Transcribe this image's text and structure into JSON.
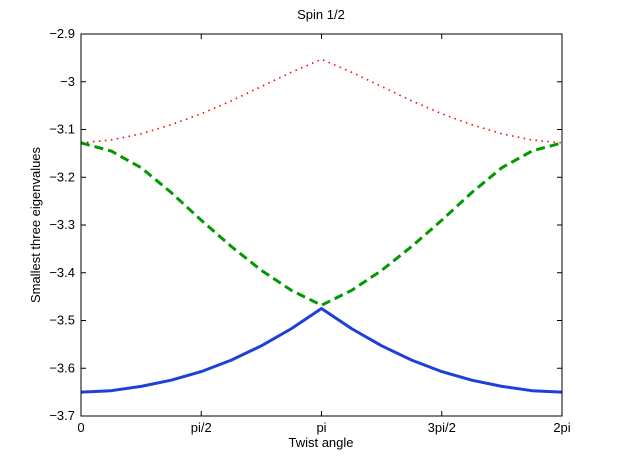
{
  "chart_data": {
    "type": "line",
    "title": "Spin 1/2",
    "xlabel": "Twist angle",
    "ylabel": "Smallest three eigenvalues",
    "xlim": [
      0,
      6.283185
    ],
    "ylim": [
      -3.7,
      -2.9
    ],
    "xticks": [
      {
        "value": 0,
        "label": "0"
      },
      {
        "value": 1.570796,
        "label": "pi/2"
      },
      {
        "value": 3.141593,
        "label": "pi"
      },
      {
        "value": 4.712389,
        "label": "3pi/2"
      },
      {
        "value": 6.283185,
        "label": "2pi"
      }
    ],
    "yticks": [
      {
        "value": -3.7,
        "label": "-3.7"
      },
      {
        "value": -3.6,
        "label": "-3.6"
      },
      {
        "value": -3.5,
        "label": "-3.5"
      },
      {
        "value": -3.4,
        "label": "-3.4"
      },
      {
        "value": -3.3,
        "label": "-3.3"
      },
      {
        "value": -3.2,
        "label": "-3.2"
      },
      {
        "value": -3.1,
        "label": "-3.1"
      },
      {
        "value": -3.0,
        "label": "-3"
      },
      {
        "value": -2.9,
        "label": "-2.9"
      }
    ],
    "grid": false,
    "series": [
      {
        "style": "dotted",
        "color": "#ff0000",
        "x": [
          0,
          0.3927,
          0.7854,
          1.1781,
          1.5708,
          1.9635,
          2.3562,
          2.7489,
          3.1416,
          3.5343,
          3.927,
          4.3197,
          4.7124,
          5.1051,
          5.4978,
          5.8905,
          6.2832
        ],
        "y": [
          -3.128,
          -3.122,
          -3.109,
          -3.09,
          -3.067,
          -3.04,
          -3.01,
          -2.98,
          -2.953,
          -2.98,
          -3.01,
          -3.04,
          -3.067,
          -3.09,
          -3.109,
          -3.122,
          -3.128
        ]
      },
      {
        "style": "dashed",
        "color": "#009900",
        "x": [
          0,
          0.3927,
          0.7854,
          1.1781,
          1.5708,
          1.9635,
          2.3562,
          2.7489,
          3.1416,
          3.5343,
          3.927,
          4.3197,
          4.7124,
          5.1051,
          5.4978,
          5.8905,
          6.2832
        ],
        "y": [
          -3.128,
          -3.145,
          -3.18,
          -3.232,
          -3.29,
          -3.345,
          -3.395,
          -3.437,
          -3.468,
          -3.437,
          -3.395,
          -3.345,
          -3.29,
          -3.232,
          -3.18,
          -3.145,
          -3.128
        ]
      },
      {
        "style": "solid",
        "color": "#1f3fd9",
        "x": [
          0,
          0.3927,
          0.7854,
          1.1781,
          1.5708,
          1.9635,
          2.3562,
          2.7489,
          3.1416,
          3.5343,
          3.927,
          4.3197,
          4.7124,
          5.1051,
          5.4978,
          5.8905,
          6.2832
        ],
        "y": [
          -3.65,
          -3.647,
          -3.638,
          -3.625,
          -3.607,
          -3.583,
          -3.553,
          -3.517,
          -3.475,
          -3.517,
          -3.553,
          -3.583,
          -3.607,
          -3.625,
          -3.638,
          -3.647,
          -3.65
        ]
      }
    ]
  }
}
